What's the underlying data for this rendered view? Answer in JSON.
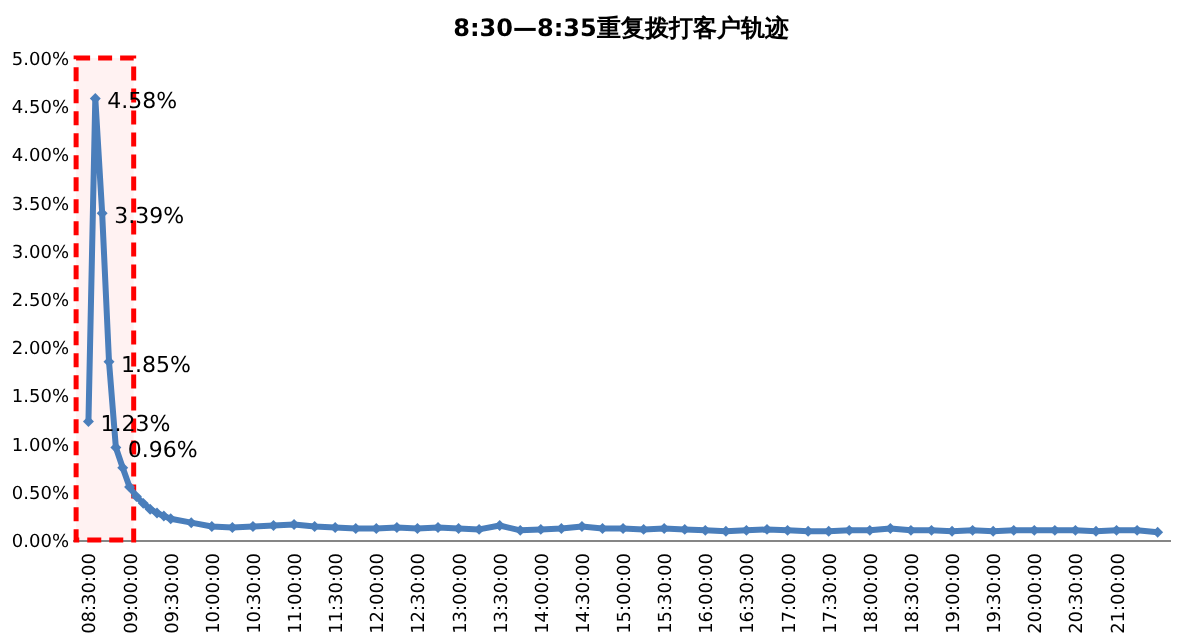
{
  "chart_data": {
    "type": "line",
    "title": "8:30—8:35重复拨打客户轨迹",
    "x": [
      8.5,
      8.5833,
      8.6667,
      8.75,
      8.8333,
      8.9167,
      9.0,
      9.0833,
      9.1667,
      9.25,
      9.3333,
      9.4167,
      9.5,
      9.75,
      10.0,
      10.25,
      10.5,
      10.75,
      11.0,
      11.25,
      11.5,
      11.75,
      12.0,
      12.25,
      12.5,
      12.75,
      13.0,
      13.25,
      13.5,
      13.75,
      14.0,
      14.25,
      14.5,
      14.75,
      15.0,
      15.25,
      15.5,
      15.75,
      16.0,
      16.25,
      16.5,
      16.75,
      17.0,
      17.25,
      17.5,
      17.75,
      18.0,
      18.25,
      18.5,
      18.75,
      19.0,
      19.25,
      19.5,
      19.75,
      20.0,
      20.25,
      20.5,
      20.75,
      21.0,
      21.25,
      21.5
    ],
    "series": [
      {
        "color": "#4a7ebb",
        "values": [
          1.23,
          4.58,
          3.39,
          1.85,
          0.96,
          0.75,
          0.55,
          0.45,
          0.38,
          0.32,
          0.28,
          0.25,
          0.22,
          0.18,
          0.14,
          0.13,
          0.14,
          0.15,
          0.16,
          0.14,
          0.13,
          0.12,
          0.12,
          0.13,
          0.12,
          0.13,
          0.12,
          0.11,
          0.15,
          0.1,
          0.11,
          0.12,
          0.14,
          0.12,
          0.12,
          0.11,
          0.12,
          0.11,
          0.1,
          0.09,
          0.1,
          0.11,
          0.1,
          0.09,
          0.09,
          0.1,
          0.1,
          0.12,
          0.1,
          0.1,
          0.09,
          0.1,
          0.09,
          0.1,
          0.1,
          0.1,
          0.1,
          0.09,
          0.1,
          0.1,
          0.08
        ],
        "value_labels": [
          "1.23%",
          "4.58%",
          "3.39%",
          "1.85%",
          "0.96%",
          null,
          null,
          null,
          null,
          null,
          null,
          null,
          null,
          null,
          null,
          null,
          null,
          null,
          null,
          null,
          null,
          null,
          null,
          null,
          null,
          null,
          null,
          null,
          null,
          null,
          null,
          null,
          null,
          null,
          null,
          null,
          null,
          null,
          null,
          null,
          null,
          null,
          null,
          null,
          null,
          null,
          null,
          null,
          null,
          null,
          null,
          null,
          null,
          null,
          null,
          null,
          null,
          null,
          null,
          null,
          null
        ]
      }
    ],
    "xlim": [
      8.3,
      21.65
    ],
    "xticks": [
      {
        "value": 8.5,
        "label": "08:30:00"
      },
      {
        "value": 9.0,
        "label": "09:00:00"
      },
      {
        "value": 9.5,
        "label": "09:30:00"
      },
      {
        "value": 10.0,
        "label": "10:00:00"
      },
      {
        "value": 10.5,
        "label": "10:30:00"
      },
      {
        "value": 11.0,
        "label": "11:00:00"
      },
      {
        "value": 11.5,
        "label": "11:30:00"
      },
      {
        "value": 12.0,
        "label": "12:00:00"
      },
      {
        "value": 12.5,
        "label": "12:30:00"
      },
      {
        "value": 13.0,
        "label": "13:00:00"
      },
      {
        "value": 13.5,
        "label": "13:30:00"
      },
      {
        "value": 14.0,
        "label": "14:00:00"
      },
      {
        "value": 14.5,
        "label": "14:30:00"
      },
      {
        "value": 15.0,
        "label": "15:00:00"
      },
      {
        "value": 15.5,
        "label": "15:30:00"
      },
      {
        "value": 16.0,
        "label": "16:00:00"
      },
      {
        "value": 16.5,
        "label": "16:30:00"
      },
      {
        "value": 17.0,
        "label": "17:00:00"
      },
      {
        "value": 17.5,
        "label": "17:30:00"
      },
      {
        "value": 18.0,
        "label": "18:00:00"
      },
      {
        "value": 18.5,
        "label": "18:30:00"
      },
      {
        "value": 19.0,
        "label": "19:00:00"
      },
      {
        "value": 19.5,
        "label": "19:30:00"
      },
      {
        "value": 20.0,
        "label": "20:00:00"
      },
      {
        "value": 20.5,
        "label": "20:30:00"
      },
      {
        "value": 21.0,
        "label": "21:00:00"
      }
    ],
    "ylim": [
      0,
      5
    ],
    "yticks": [
      {
        "value": 0,
        "label": "0.00%"
      },
      {
        "value": 0.5,
        "label": "0.50%"
      },
      {
        "value": 1.0,
        "label": "1.00%"
      },
      {
        "value": 1.5,
        "label": "1.50%"
      },
      {
        "value": 2.0,
        "label": "2.00%"
      },
      {
        "value": 2.5,
        "label": "2.50%"
      },
      {
        "value": 3.0,
        "label": "3.00%"
      },
      {
        "value": 3.5,
        "label": "3.50%"
      },
      {
        "value": 4.0,
        "label": "4.00%"
      },
      {
        "value": 4.5,
        "label": "4.50%"
      },
      {
        "value": 5.0,
        "label": "5.00%"
      }
    ],
    "bands": [
      {
        "axis": "x",
        "from": 8.35,
        "to": 9.05,
        "color": "#ff0000"
      }
    ],
    "marker": "diamond",
    "line_style": "solid",
    "grid": false
  }
}
